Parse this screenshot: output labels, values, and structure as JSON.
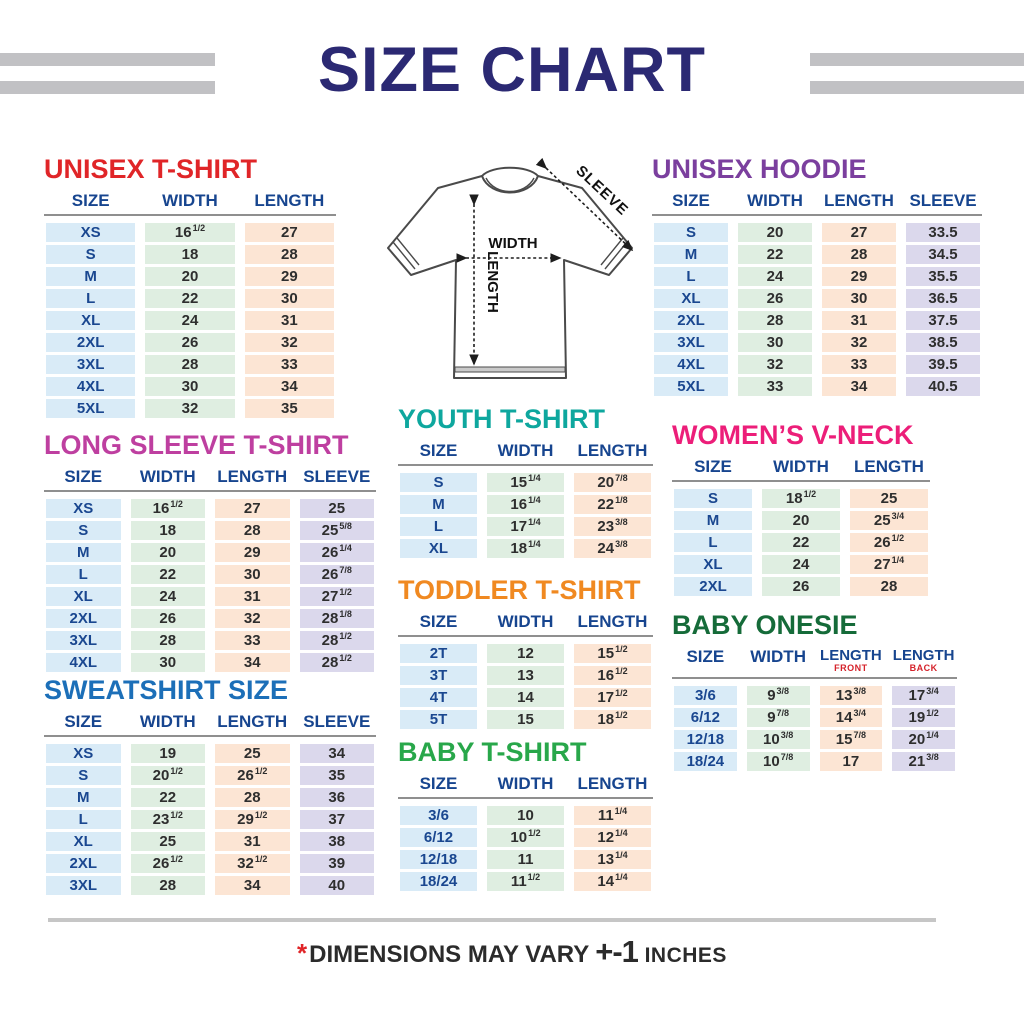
{
  "page": {
    "title": "SIZE CHART",
    "footer": {
      "asterisk": "*",
      "text": "DIMENSIONS MAY VARY",
      "variance": "+-1",
      "unit": "INCHES"
    }
  },
  "colors": {
    "title_navy": "#2b2973",
    "header_navy": "#17458f",
    "bar_gray": "#c1c1c4",
    "cell_blue": "#d9ebf7",
    "cell_green": "#dfeee1",
    "cell_peach": "#fce5d4",
    "cell_lavender": "#dbd8ec",
    "red": "#e02528",
    "purple": "#7b3f9e",
    "magenta": "#be3fa0",
    "teal": "#0ea79e",
    "pink": "#ec1e79",
    "orange": "#f08921",
    "dark_green": "#156b39",
    "blue": "#1c6fb8",
    "green": "#28a74a"
  },
  "diagram": {
    "width_label": "WIDTH",
    "length_label": "LENGTH",
    "sleeve_label": "SLEEVE"
  },
  "chart_data": [
    {
      "type": "table",
      "title": "UNISEX T-SHIRT",
      "title_color": "#e02528",
      "columns": [
        {
          "label": "SIZE"
        },
        {
          "label": "WIDTH"
        },
        {
          "label": "LENGTH"
        }
      ],
      "col_colors": [
        "c-size",
        "c-width",
        "c-length"
      ],
      "rows": [
        [
          "XS",
          "16^1/2",
          "27"
        ],
        [
          "S",
          "18",
          "28"
        ],
        [
          "M",
          "20",
          "29"
        ],
        [
          "L",
          "22",
          "30"
        ],
        [
          "XL",
          "24",
          "31"
        ],
        [
          "2XL",
          "26",
          "32"
        ],
        [
          "3XL",
          "28",
          "33"
        ],
        [
          "4XL",
          "30",
          "34"
        ],
        [
          "5XL",
          "32",
          "35"
        ]
      ]
    },
    {
      "type": "table",
      "title": "UNISEX HOODIE",
      "title_color": "#7b3f9e",
      "columns": [
        {
          "label": "SIZE"
        },
        {
          "label": "WIDTH"
        },
        {
          "label": "LENGTH"
        },
        {
          "label": "SLEEVE"
        }
      ],
      "col_colors": [
        "c-size",
        "c-width",
        "c-length",
        "c-sleeve"
      ],
      "rows": [
        [
          "S",
          "20",
          "27",
          "33.5"
        ],
        [
          "M",
          "22",
          "28",
          "34.5"
        ],
        [
          "L",
          "24",
          "29",
          "35.5"
        ],
        [
          "XL",
          "26",
          "30",
          "36.5"
        ],
        [
          "2XL",
          "28",
          "31",
          "37.5"
        ],
        [
          "3XL",
          "30",
          "32",
          "38.5"
        ],
        [
          "4XL",
          "32",
          "33",
          "39.5"
        ],
        [
          "5XL",
          "33",
          "34",
          "40.5"
        ]
      ]
    },
    {
      "type": "table",
      "title": "LONG SLEEVE T-SHIRT",
      "title_color": "#be3fa0",
      "columns": [
        {
          "label": "SIZE"
        },
        {
          "label": "WIDTH"
        },
        {
          "label": "LENGTH"
        },
        {
          "label": "SLEEVE"
        }
      ],
      "col_colors": [
        "c-size",
        "c-width",
        "c-length",
        "c-sleeve"
      ],
      "rows": [
        [
          "XS",
          "16^1/2",
          "27",
          "25"
        ],
        [
          "S",
          "18",
          "28",
          "25^5/8"
        ],
        [
          "M",
          "20",
          "29",
          "26^1/4"
        ],
        [
          "L",
          "22",
          "30",
          "26^7/8"
        ],
        [
          "XL",
          "24",
          "31",
          "27^1/2"
        ],
        [
          "2XL",
          "26",
          "32",
          "28^1/8"
        ],
        [
          "3XL",
          "28",
          "33",
          "28^1/2"
        ],
        [
          "4XL",
          "30",
          "34",
          "28^1/2"
        ]
      ]
    },
    {
      "type": "table",
      "title": "YOUTH T-SHIRT",
      "title_color": "#0ea79e",
      "columns": [
        {
          "label": "SIZE"
        },
        {
          "label": "WIDTH"
        },
        {
          "label": "LENGTH"
        }
      ],
      "col_colors": [
        "c-size",
        "c-width",
        "c-length"
      ],
      "rows": [
        [
          "S",
          "15^1/4",
          "20^7/8"
        ],
        [
          "M",
          "16^1/4",
          "22^1/8"
        ],
        [
          "L",
          "17^1/4",
          "23^3/8"
        ],
        [
          "XL",
          "18^1/4",
          "24^3/8"
        ]
      ]
    },
    {
      "type": "table",
      "title": "WOMEN’S V-NECK",
      "title_color": "#ec1e79",
      "columns": [
        {
          "label": "SIZE"
        },
        {
          "label": "WIDTH"
        },
        {
          "label": "LENGTH"
        }
      ],
      "col_colors": [
        "c-size",
        "c-width",
        "c-length"
      ],
      "rows": [
        [
          "S",
          "18^1/2",
          "25"
        ],
        [
          "M",
          "20",
          "25^3/4"
        ],
        [
          "L",
          "22",
          "26^1/2"
        ],
        [
          "XL",
          "24",
          "27^1/4"
        ],
        [
          "2XL",
          "26",
          "28"
        ]
      ]
    },
    {
      "type": "table",
      "title": "TODDLER T-SHIRT",
      "title_color": "#f08921",
      "columns": [
        {
          "label": "SIZE"
        },
        {
          "label": "WIDTH"
        },
        {
          "label": "LENGTH"
        }
      ],
      "col_colors": [
        "c-size",
        "c-width",
        "c-length"
      ],
      "rows": [
        [
          "2T",
          "12",
          "15^1/2"
        ],
        [
          "3T",
          "13",
          "16^1/2"
        ],
        [
          "4T",
          "14",
          "17^1/2"
        ],
        [
          "5T",
          "15",
          "18^1/2"
        ]
      ]
    },
    {
      "type": "table",
      "title": "BABY ONESIE",
      "title_color": "#156b39",
      "columns": [
        {
          "label": "SIZE"
        },
        {
          "label": "WIDTH"
        },
        {
          "label": "LENGTH",
          "sub": "FRONT"
        },
        {
          "label": "LENGTH",
          "sub": "BACK"
        }
      ],
      "col_colors": [
        "c-size",
        "c-width",
        "c-length",
        "c-sleeve"
      ],
      "rows": [
        [
          "3/6",
          "9^3/8",
          "13^3/8",
          "17^3/4"
        ],
        [
          "6/12",
          "9^7/8",
          "14^3/4",
          "19^1/2"
        ],
        [
          "12/18",
          "10^3/8",
          "15^7/8",
          "20^1/4"
        ],
        [
          "18/24",
          "10^7/8",
          "17",
          "21^3/8"
        ]
      ]
    },
    {
      "type": "table",
      "title": "SWEATSHIRT SIZE",
      "title_color": "#1c6fb8",
      "columns": [
        {
          "label": "SIZE"
        },
        {
          "label": "WIDTH"
        },
        {
          "label": "LENGTH"
        },
        {
          "label": "SLEEVE"
        }
      ],
      "col_colors": [
        "c-size",
        "c-width",
        "c-length",
        "c-sleeve"
      ],
      "rows": [
        [
          "XS",
          "19",
          "25",
          "34"
        ],
        [
          "S",
          "20^1/2",
          "26^1/2",
          "35"
        ],
        [
          "M",
          "22",
          "28",
          "36"
        ],
        [
          "L",
          "23^1/2",
          "29^1/2",
          "37"
        ],
        [
          "XL",
          "25",
          "31",
          "38"
        ],
        [
          "2XL",
          "26^1/2",
          "32^1/2",
          "39"
        ],
        [
          "3XL",
          "28",
          "34",
          "40"
        ]
      ]
    },
    {
      "type": "table",
      "title": "BABY T-SHIRT",
      "title_color": "#28a74a",
      "columns": [
        {
          "label": "SIZE"
        },
        {
          "label": "WIDTH"
        },
        {
          "label": "LENGTH"
        }
      ],
      "col_colors": [
        "c-size",
        "c-width",
        "c-length"
      ],
      "rows": [
        [
          "3/6",
          "10",
          "11^1/4"
        ],
        [
          "6/12",
          "10^1/2",
          "12^1/4"
        ],
        [
          "12/18",
          "11",
          "13^1/4"
        ],
        [
          "18/24",
          "11^1/2",
          "14^1/4"
        ]
      ]
    }
  ]
}
